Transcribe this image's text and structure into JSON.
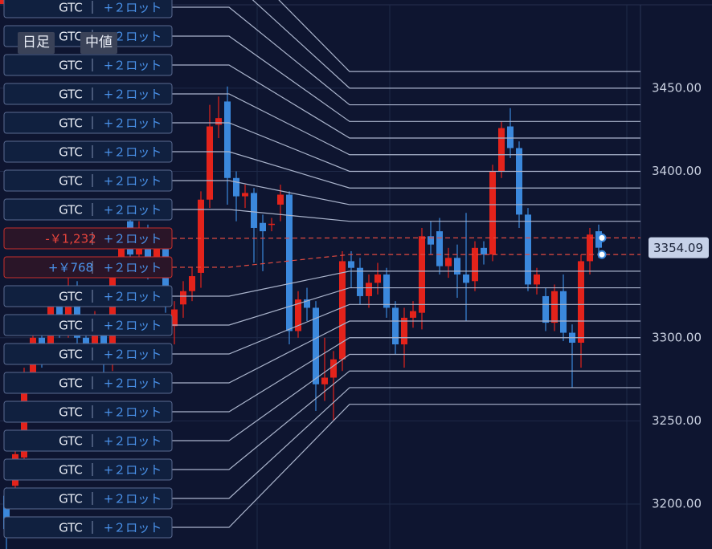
{
  "toolbar": {
    "timeframe": "日足",
    "price_type": "中値"
  },
  "chart_data": {
    "type": "candlestick",
    "open": [
      3205,
      3211,
      3228,
      3275,
      3300,
      3290,
      3320,
      3305,
      3330,
      3300,
      3290,
      3310,
      3285,
      3340,
      3370,
      3350,
      3365,
      3340,
      3360,
      3307,
      3320,
      3328,
      3339,
      3383,
      3428,
      3442,
      3396,
      3385,
      3387,
      3369,
      3368,
      3380,
      3386,
      3304,
      3323,
      3318,
      3272,
      3276,
      3287,
      3346,
      3342,
      3325,
      3333,
      3338,
      3318,
      3296,
      3312,
      3315,
      3361,
      3364,
      3343,
      3348,
      3338,
      3334,
      3354,
      3350,
      3400,
      3427,
      3414,
      3374,
      3332,
      3325,
      3309,
      3328,
      3303,
      3297,
      3346,
      3364
    ],
    "high": [
      3210,
      3240,
      3282,
      3310,
      3306,
      3325,
      3324,
      3336,
      3334,
      3305,
      3316,
      3314,
      3345,
      3366,
      3375,
      3370,
      3368,
      3364,
      3365,
      3322,
      3334,
      3342,
      3388,
      3440,
      3445,
      3451,
      3400,
      3392,
      3390,
      3374,
      3372,
      3392,
      3388,
      3328,
      3330,
      3322,
      3300,
      3292,
      3352,
      3352,
      3348,
      3338,
      3345,
      3342,
      3322,
      3318,
      3322,
      3366,
      3370,
      3372,
      3354,
      3356,
      3375,
      3358,
      3358,
      3404,
      3430,
      3438,
      3418,
      3378,
      3342,
      3330,
      3332,
      3338,
      3308,
      3350,
      3366,
      3368
    ],
    "low": [
      3173,
      3205,
      3220,
      3268,
      3282,
      3286,
      3300,
      3300,
      3296,
      3284,
      3286,
      3278,
      3280,
      3336,
      3345,
      3346,
      3335,
      3336,
      3315,
      3296,
      3312,
      3322,
      3330,
      3378,
      3420,
      3380,
      3370,
      3378,
      3345,
      3340,
      3364,
      3370,
      3296,
      3300,
      3310,
      3256,
      3262,
      3250,
      3280,
      3330,
      3320,
      3318,
      3326,
      3312,
      3290,
      3282,
      3306,
      3305,
      3350,
      3338,
      3336,
      3324,
      3310,
      3328,
      3344,
      3346,
      3396,
      3408,
      3366,
      3328,
      3326,
      3304,
      3304,
      3298,
      3270,
      3282,
      3338,
      3348
    ],
    "close": [
      3185,
      3230,
      3275,
      3300,
      3290,
      3320,
      3305,
      3330,
      3300,
      3290,
      3310,
      3285,
      3340,
      3360,
      3350,
      3365,
      3340,
      3360,
      3320,
      3317,
      3328,
      3337,
      3383,
      3427,
      3432,
      3396,
      3385,
      3387,
      3366,
      3364,
      3368.5,
      3386,
      3304,
      3323,
      3318,
      3272,
      3276,
      3287,
      3346,
      3342,
      3325,
      3333,
      3338,
      3318,
      3296,
      3312,
      3316,
      3361,
      3356,
      3343,
      3348,
      3338,
      3333,
      3354,
      3350,
      3400,
      3426,
      3414,
      3374,
      3332,
      3338,
      3309,
      3328,
      3303,
      3297,
      3346,
      3362,
      3354.09
    ],
    "up_color": "#e3231b",
    "down_color": "#3b88dc",
    "ylim": [
      3173,
      3503
    ],
    "yticks": [
      {
        "value": 3450,
        "label": "3450.00"
      },
      {
        "value": 3400,
        "label": "3400.00"
      },
      {
        "value": 3300,
        "label": "3300.00"
      },
      {
        "value": 3250,
        "label": "3250.00"
      },
      {
        "value": 3200,
        "label": "3200.00"
      }
    ],
    "grid": true,
    "last_price": 3354.09
  },
  "offscreen_order_prices": [
    3460,
    3450
  ],
  "orders": [
    {
      "left": "GTC",
      "right": "+２ロット",
      "price": 3440
    },
    {
      "left": "GTC",
      "right": "+２ロット",
      "price": 3430
    },
    {
      "left": "GTC",
      "right": "+２ロット",
      "price": 3420
    },
    {
      "left": "GTC",
      "right": "+２ロット",
      "price": 3410
    },
    {
      "left": "GTC",
      "right": "+２ロット",
      "price": 3400
    },
    {
      "left": "GTC",
      "right": "+２ロット",
      "price": 3390
    },
    {
      "left": "GTC",
      "right": "+２ロット",
      "price": 3380
    },
    {
      "left": "GTC",
      "right": "+２ロット",
      "price": 3370
    },
    {
      "left": "-￥1,232",
      "right": "+２ロット",
      "price": 3360,
      "position": true
    },
    {
      "left": "+￥768",
      "right": "+２ロット",
      "price": 3350,
      "position": true
    },
    {
      "left": "GTC",
      "right": "+２ロット",
      "price": 3340
    },
    {
      "left": "GTC",
      "right": "+２ロット",
      "price": 3330
    },
    {
      "left": "GTC",
      "right": "+２ロット",
      "price": 3320
    },
    {
      "left": "GTC",
      "right": "+２ロット",
      "price": 3310
    },
    {
      "left": "GTC",
      "right": "+２ロット",
      "price": 3300
    },
    {
      "left": "GTC",
      "right": "+２ロット",
      "price": 3290
    },
    {
      "left": "GTC",
      "right": "+２ロット",
      "price": 3280
    },
    {
      "left": "GTC",
      "right": "+２ロット",
      "price": 3270
    },
    {
      "left": "GTC",
      "right": "+２ロット",
      "price": 3260
    }
  ]
}
